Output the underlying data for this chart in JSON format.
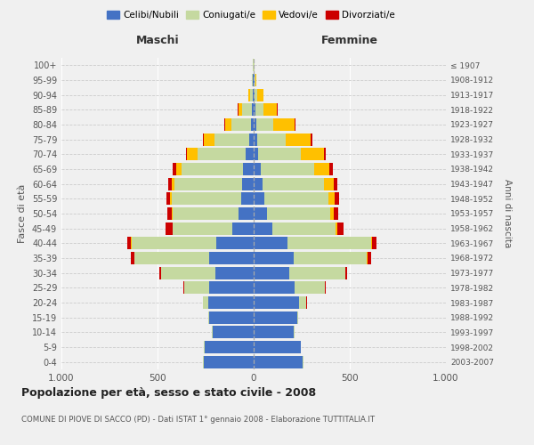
{
  "age_groups": [
    "0-4",
    "5-9",
    "10-14",
    "15-19",
    "20-24",
    "25-29",
    "30-34",
    "35-39",
    "40-44",
    "45-49",
    "50-54",
    "55-59",
    "60-64",
    "65-69",
    "70-74",
    "75-79",
    "80-84",
    "85-89",
    "90-94",
    "95-99",
    "100+"
  ],
  "birth_years": [
    "2003-2007",
    "1998-2002",
    "1993-1997",
    "1988-1992",
    "1983-1987",
    "1978-1982",
    "1973-1977",
    "1968-1972",
    "1963-1967",
    "1958-1962",
    "1953-1957",
    "1948-1952",
    "1943-1947",
    "1938-1942",
    "1933-1937",
    "1928-1932",
    "1923-1927",
    "1918-1922",
    "1913-1917",
    "1908-1912",
    "≤ 1907"
  ],
  "male": {
    "celibe": [
      260,
      255,
      215,
      230,
      235,
      230,
      200,
      230,
      195,
      110,
      80,
      65,
      60,
      55,
      40,
      25,
      15,
      10,
      5,
      3,
      2
    ],
    "coniugato": [
      2,
      2,
      2,
      5,
      30,
      130,
      280,
      390,
      440,
      310,
      340,
      360,
      350,
      320,
      250,
      180,
      100,
      50,
      15,
      5,
      2
    ],
    "vedovo": [
      0,
      0,
      0,
      0,
      0,
      1,
      1,
      2,
      2,
      3,
      5,
      8,
      15,
      30,
      55,
      55,
      35,
      20,
      10,
      3,
      1
    ],
    "divorziato": [
      0,
      0,
      0,
      0,
      1,
      3,
      8,
      18,
      20,
      35,
      22,
      20,
      18,
      15,
      8,
      5,
      3,
      2,
      0,
      0,
      0
    ]
  },
  "female": {
    "nubile": [
      255,
      245,
      210,
      225,
      235,
      215,
      185,
      210,
      175,
      95,
      70,
      55,
      45,
      35,
      25,
      18,
      12,
      10,
      5,
      3,
      2
    ],
    "coniugata": [
      2,
      2,
      2,
      8,
      40,
      155,
      290,
      380,
      435,
      330,
      330,
      335,
      320,
      280,
      220,
      150,
      90,
      40,
      15,
      5,
      2
    ],
    "vedova": [
      0,
      0,
      0,
      0,
      0,
      1,
      2,
      3,
      5,
      8,
      15,
      30,
      50,
      80,
      120,
      130,
      110,
      70,
      30,
      8,
      1
    ],
    "divorziata": [
      0,
      0,
      0,
      0,
      2,
      4,
      10,
      18,
      22,
      35,
      25,
      25,
      22,
      18,
      12,
      8,
      5,
      3,
      1,
      0,
      0
    ]
  },
  "colors": {
    "celibe": "#4472c4",
    "coniugato": "#c5d9a0",
    "vedovo": "#ffc000",
    "divorziato": "#cc0000"
  },
  "legend_labels": [
    "Celibi/Nubili",
    "Coniugati/e",
    "Vedovi/e",
    "Divorziati/e"
  ],
  "legend_colors": [
    "#4472c4",
    "#c5d9a0",
    "#ffc000",
    "#cc0000"
  ],
  "title": "Popolazione per età, sesso e stato civile - 2008",
  "subtitle": "COMUNE DI PIOVE DI SACCO (PD) - Dati ISTAT 1° gennaio 2008 - Elaborazione TUTTITALIA.IT",
  "xlabel_left": "Maschi",
  "xlabel_right": "Femmine",
  "ylabel_left": "Fasce di età",
  "ylabel_right": "Anni di nascita",
  "xlim": 1000,
  "bg_color": "#f0f0f0",
  "bar_height": 0.85
}
